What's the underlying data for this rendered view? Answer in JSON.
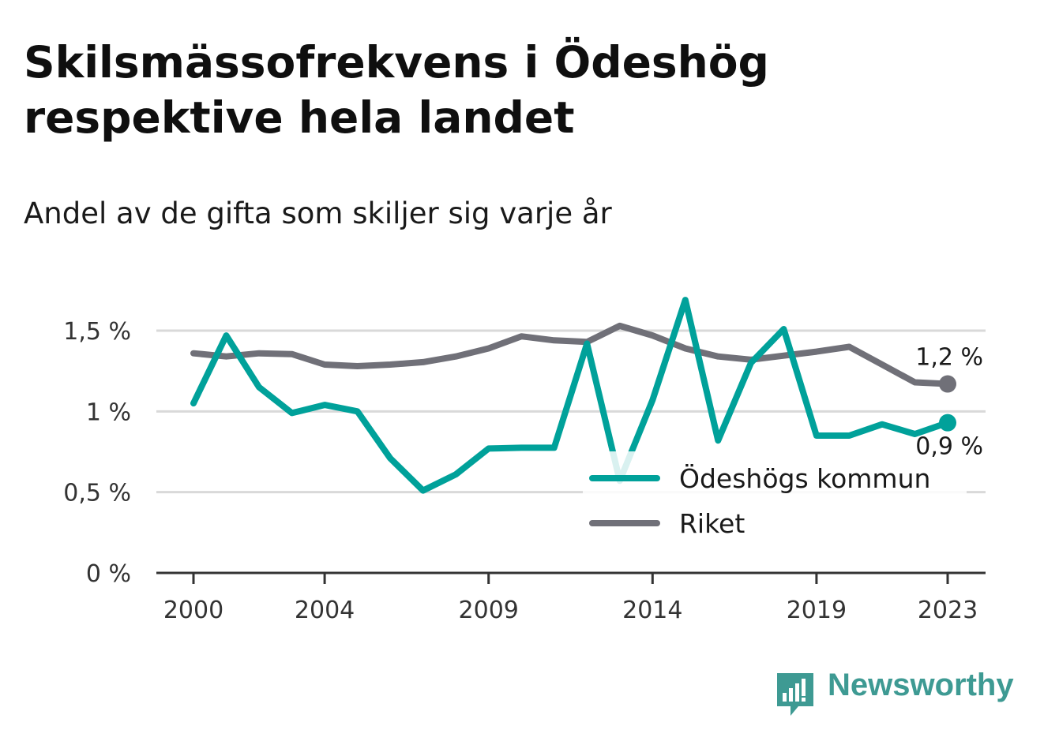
{
  "title": "Skilsmässofrekvens i Ödeshög respektive hela landet",
  "subtitle": "Andel av de gifta som skiljer sig varje år",
  "brand": {
    "name": "Newsworthy",
    "icon": "newsworthy-logo-icon"
  },
  "colors": {
    "odeshog": "#00a19a",
    "riket": "#707078",
    "grid": "#d9d9d9",
    "axis": "#333333"
  },
  "chart_data": {
    "type": "line",
    "x": [
      2000,
      2001,
      2002,
      2003,
      2004,
      2005,
      2006,
      2007,
      2008,
      2009,
      2010,
      2011,
      2012,
      2013,
      2014,
      2015,
      2016,
      2017,
      2018,
      2019,
      2020,
      2021,
      2022,
      2023
    ],
    "x_ticks": [
      2000,
      2004,
      2009,
      2014,
      2019,
      2023
    ],
    "y_ticks": [
      {
        "value": 0,
        "label": "0 %"
      },
      {
        "value": 0.5,
        "label": "0,5 %"
      },
      {
        "value": 1.0,
        "label": "1 %"
      },
      {
        "value": 1.5,
        "label": "1,5 %"
      }
    ],
    "ylim": [
      0,
      1.5
    ],
    "grid": true,
    "legend_position": "bottom-right",
    "series": [
      {
        "name": "Ödeshögs kommun",
        "color": "#00a19a",
        "end_label": "0,9 %",
        "values": [
          1.05,
          1.47,
          1.15,
          0.99,
          1.04,
          1.0,
          0.71,
          0.51,
          0.61,
          0.77,
          0.775,
          0.775,
          1.42,
          0.57,
          1.07,
          1.69,
          0.82,
          1.3,
          1.51,
          0.85,
          0.85,
          0.92,
          0.86,
          0.93
        ]
      },
      {
        "name": "Riket",
        "color": "#707078",
        "end_label": "1,2 %",
        "values": [
          1.36,
          1.34,
          1.36,
          1.355,
          1.29,
          1.28,
          1.29,
          1.305,
          1.34,
          1.39,
          1.465,
          1.44,
          1.43,
          1.53,
          1.47,
          1.39,
          1.34,
          1.32,
          1.345,
          1.37,
          1.4,
          1.29,
          1.18,
          1.17
        ]
      }
    ]
  }
}
